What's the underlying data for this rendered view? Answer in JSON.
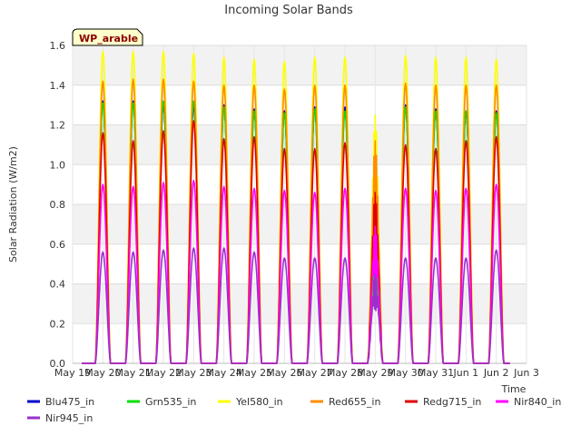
{
  "chart_data": {
    "type": "line",
    "title": "Incoming Solar Bands",
    "xlabel": "Time",
    "ylabel": "Solar Radiation (W/m2)",
    "site_label": "WP_arable",
    "ylim": [
      0,
      1.6
    ],
    "yticks": [
      "0.0",
      "0.2",
      "0.4",
      "0.6",
      "0.8",
      "1.0",
      "1.2",
      "1.4",
      "1.6"
    ],
    "xticks": [
      "May 19",
      "May 20",
      "May 21",
      "May 22",
      "May 23",
      "May 24",
      "May 25",
      "May 26",
      "May 27",
      "May 28",
      "May 29",
      "May 30",
      "May 31",
      "Jun 1",
      "Jun 2",
      "Jun 3"
    ],
    "x_start": "May 19",
    "x_end": "Jun 3",
    "grid": true,
    "legend_position": "bottom",
    "peak_days": [
      "May 20",
      "May 21",
      "May 22",
      "May 23",
      "May 24",
      "May 25",
      "May 26",
      "May 27",
      "May 28",
      "May 29",
      "May 30",
      "May 31",
      "Jun 1",
      "Jun 2"
    ],
    "series": [
      {
        "name": "Blu475_in",
        "color": "#0000cc",
        "values": [
          1.32,
          1.32,
          1.31,
          1.3,
          1.3,
          1.28,
          1.27,
          1.29,
          1.29,
          0.62,
          1.3,
          1.28,
          1.27,
          1.27
        ]
      },
      {
        "name": "Grn535_in",
        "color": "#00dd00",
        "values": [
          1.31,
          1.31,
          1.32,
          1.32,
          1.29,
          1.27,
          1.26,
          1.28,
          1.27,
          0.6,
          1.29,
          1.27,
          1.27,
          1.26
        ]
      },
      {
        "name": "Yel580_in",
        "color": "#ffff00",
        "values": [
          1.57,
          1.57,
          1.57,
          1.56,
          1.54,
          1.53,
          1.52,
          1.54,
          1.54,
          1.25,
          1.55,
          1.54,
          1.54,
          1.53
        ]
      },
      {
        "name": "Red655_in",
        "color": "#ff8c00",
        "values": [
          1.42,
          1.43,
          1.43,
          1.42,
          1.4,
          1.4,
          1.38,
          1.4,
          1.4,
          1.12,
          1.41,
          1.4,
          1.4,
          1.4
        ]
      },
      {
        "name": "Redg715_in",
        "color": "#dd0000",
        "values": [
          1.16,
          1.12,
          1.17,
          1.22,
          1.13,
          1.14,
          1.08,
          1.08,
          1.11,
          0.86,
          1.1,
          1.08,
          1.12,
          1.14
        ]
      },
      {
        "name": "Nir840_in",
        "color": "#ff00ff",
        "values": [
          0.9,
          0.89,
          0.91,
          0.92,
          0.89,
          0.88,
          0.87,
          0.86,
          0.88,
          0.69,
          0.88,
          0.87,
          0.88,
          0.9
        ]
      },
      {
        "name": "Nir945_in",
        "color": "#9932cc",
        "values": [
          0.56,
          0.56,
          0.57,
          0.58,
          0.58,
          0.56,
          0.53,
          0.53,
          0.53,
          0.45,
          0.53,
          0.53,
          0.53,
          0.57
        ]
      }
    ]
  }
}
